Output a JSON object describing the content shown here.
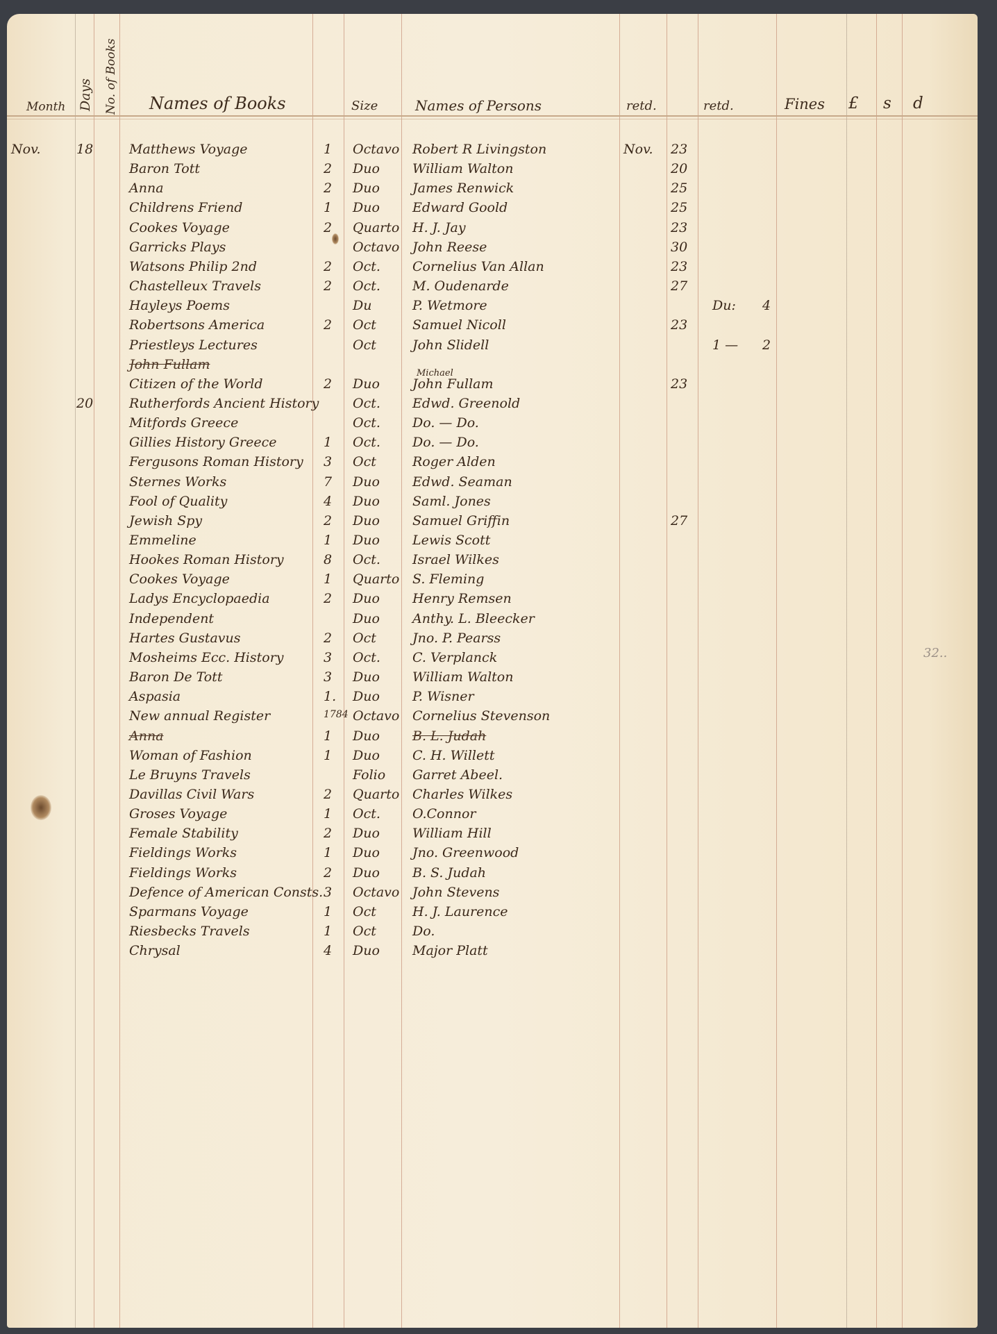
{
  "headers": {
    "month": "Month",
    "days": "Days",
    "no_of_books": "No. of Books",
    "names_of_books": "Names of Books",
    "size": "Size",
    "names_of_persons": "Names of Persons",
    "returned_1": "retd.",
    "returned_2": "retd.",
    "fines": "Fines",
    "pounds": "£",
    "shillings": "s",
    "pence": "d"
  },
  "rows": [
    {
      "month": "Nov.",
      "day": "18",
      "book": "Matthews Voyage",
      "count": "1",
      "size": "Octavo",
      "person": "Robert R Livingston",
      "ret_month": "Nov.",
      "ret_day": "23"
    },
    {
      "book": "Baron Tott",
      "count": "2",
      "size": "Duo",
      "person": "William Walton",
      "ret_day": "20"
    },
    {
      "book": "Anna",
      "count": "2",
      "size": "Duo",
      "person": "James Renwick",
      "ret_day": "25"
    },
    {
      "book": "Childrens Friend",
      "count": "1",
      "size": "Duo",
      "person": "Edward Goold",
      "ret_day": "25"
    },
    {
      "book": "Cookes Voyage",
      "count": "2",
      "size": "Quarto",
      "person": "H. J. Jay",
      "ret_day": "23"
    },
    {
      "book": "Garricks Plays",
      "size": "Octavo",
      "person": "John Reese",
      "ret_day": "30"
    },
    {
      "book": "Watsons Philip 2nd",
      "count": "2",
      "size": "Oct.",
      "person": "Cornelius Van Allan",
      "ret_day": "23"
    },
    {
      "book": "Chastelleux Travels",
      "count": "2",
      "size": "Oct.",
      "person": "M. Oudenarde",
      "ret_day": "27"
    },
    {
      "book": "Hayleys Poems",
      "size": "Du",
      "person": "P. Wetmore",
      "ret2": "Du:",
      "fine": "4"
    },
    {
      "book": "Robertsons America",
      "count": "2",
      "size": "Oct",
      "person": "Samuel Nicoll",
      "ret_day": "23"
    },
    {
      "book": "Priestleys Lectures",
      "size": "Oct",
      "person": "John Slidell",
      "ret2": "1 —",
      "fine": "2"
    },
    {
      "book": "John Fullam",
      "book_struck": true
    },
    {
      "book": "Citizen of the World",
      "count": "2",
      "size": "Duo",
      "person": "John Fullam",
      "person_note": "Michael",
      "ret_day": "23"
    },
    {
      "day": "20",
      "book": "Rutherfords Ancient History",
      "size": "Oct.",
      "person": "Edwd. Greenold"
    },
    {
      "book": "Mitfords Greece",
      "size": "Oct.",
      "person": "Do. — Do."
    },
    {
      "book": "Gillies History Greece",
      "count": "1",
      "size": "Oct.",
      "person": "Do. — Do."
    },
    {
      "book": "Fergusons Roman History",
      "count": "3",
      "size": "Oct",
      "person": "Roger Alden"
    },
    {
      "book": "Sternes Works",
      "count": "7",
      "size": "Duo",
      "person": "Edwd. Seaman"
    },
    {
      "book": "Fool of Quality",
      "count": "4",
      "size": "Duo",
      "person": "Saml. Jones"
    },
    {
      "book": "Jewish Spy",
      "count": "2",
      "size": "Duo",
      "person": "Samuel Griffin",
      "ret_day": "27"
    },
    {
      "book": "Emmeline",
      "count": "1",
      "size": "Duo",
      "person": "Lewis Scott"
    },
    {
      "book": "Hookes Roman History",
      "count": "8",
      "size": "Oct.",
      "person": "Israel Wilkes"
    },
    {
      "book": "Cookes Voyage",
      "count": "1",
      "size": "Quarto",
      "person": "S. Fleming"
    },
    {
      "book": "Ladys Encyclopaedia",
      "count": "2",
      "size": "Duo",
      "person": "Henry Remsen"
    },
    {
      "book": "Independent",
      "size": "Duo",
      "person": "Anthy. L. Bleecker"
    },
    {
      "book": "Hartes Gustavus",
      "count": "2",
      "size": "Oct",
      "person": "Jno. P. Pearss"
    },
    {
      "book": "Mosheims Ecc. History",
      "count": "3",
      "size": "Oct.",
      "person": "C. Verplanck"
    },
    {
      "book": "Baron De Tott",
      "count": "3",
      "size": "Duo",
      "person": "William Walton"
    },
    {
      "book": "Aspasia",
      "count": "1.",
      "size": "Duo",
      "person": "P. Wisner"
    },
    {
      "book": "New annual Register",
      "count": "1784",
      "size": "Octavo",
      "person": "Cornelius Stevenson"
    },
    {
      "book": "Anna",
      "book_struck": true,
      "count": "1",
      "size": "Duo",
      "person": "B. L. Judah",
      "person_struck": true
    },
    {
      "book": "Woman of Fashion",
      "count": "1",
      "size": "Duo",
      "person": "C. H. Willett"
    },
    {
      "book": "Le Bruyns Travels",
      "size": "Folio",
      "person": "Garret Abeel."
    },
    {
      "book": "Davillas Civil Wars",
      "count": "2",
      "size": "Quarto",
      "person": "Charles Wilkes"
    },
    {
      "book": "Groses Voyage",
      "count": "1",
      "size": "Oct.",
      "person": "O.Connor"
    },
    {
      "book": "Female Stability",
      "count": "2",
      "size": "Duo",
      "person": "William Hill"
    },
    {
      "book": "Fieldings Works",
      "count": "1",
      "size": "Duo",
      "person": "Jno. Greenwood"
    },
    {
      "book": "Fieldings Works",
      "count": "2",
      "size": "Duo",
      "person": "B. S. Judah"
    },
    {
      "book": "Defence of American Consts.",
      "count": "3",
      "size": "Octavo",
      "person": "John Stevens"
    },
    {
      "book": "Sparmans Voyage",
      "count": "1",
      "size": "Oct",
      "person": "H. J. Laurence"
    },
    {
      "book": "Riesbecks Travels",
      "count": "1",
      "size": "Oct",
      "person": "Do."
    },
    {
      "book": "Chrysal",
      "count": "4",
      "size": "Duo",
      "person": "Major Platt"
    }
  ],
  "margin_note": "32..",
  "colors": {
    "paper": "#f5ebd6",
    "ink": "#3a281a",
    "rule": "#c9977f",
    "background": "#3b3e45"
  }
}
